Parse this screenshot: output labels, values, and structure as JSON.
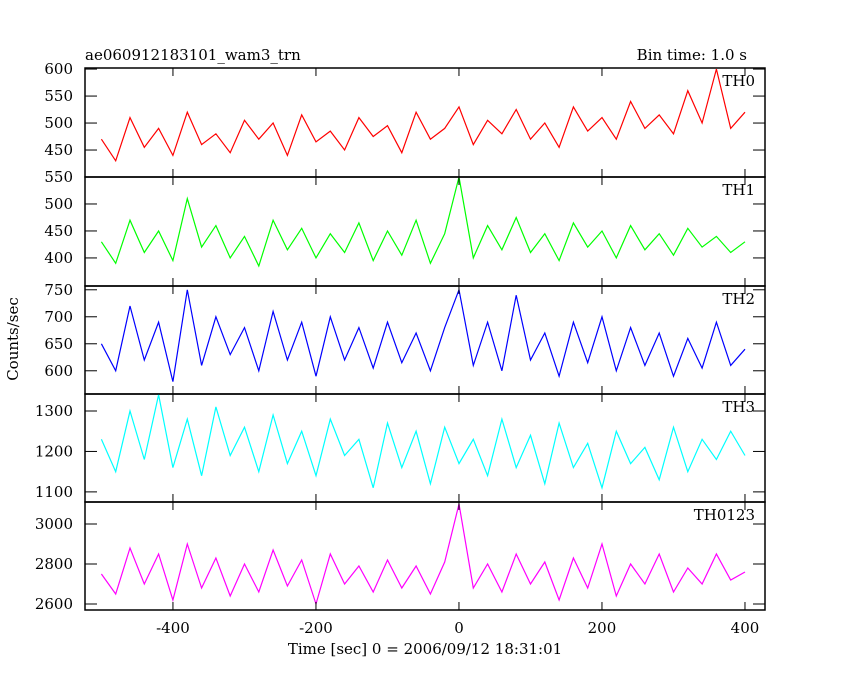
{
  "chart_data": {
    "type": "line",
    "title": "ae060912183101_wam3_trn",
    "subtitle": "Bin time: 1.0 s",
    "ylabel": "Counts/sec",
    "xlabel": "Time [sec] 0 = 2006/09/12 18:31:01",
    "xlim": [
      -523,
      428
    ],
    "xticks": [
      -400,
      -200,
      0,
      200,
      400
    ],
    "x": [
      -500,
      -480,
      -460,
      -440,
      -420,
      -400,
      -380,
      -360,
      -340,
      -320,
      -300,
      -280,
      -260,
      -240,
      -220,
      -200,
      -180,
      -160,
      -140,
      -120,
      -100,
      -80,
      -60,
      -40,
      -20,
      0,
      20,
      40,
      60,
      80,
      100,
      120,
      140,
      160,
      180,
      200,
      220,
      240,
      260,
      280,
      300,
      320,
      340,
      360,
      380,
      400
    ],
    "panels": [
      {
        "name": "TH0",
        "color": "#ff0000",
        "ylim": [
          400,
          602
        ],
        "yticks": [
          450,
          500,
          550,
          600
        ],
        "values": [
          470,
          430,
          510,
          455,
          490,
          440,
          520,
          460,
          480,
          445,
          505,
          470,
          500,
          440,
          515,
          465,
          485,
          450,
          510,
          475,
          495,
          445,
          520,
          470,
          490,
          530,
          460,
          505,
          480,
          525,
          470,
          500,
          455,
          530,
          485,
          510,
          470,
          540,
          490,
          515,
          480,
          560,
          500,
          600,
          490,
          520
        ]
      },
      {
        "name": "TH1",
        "color": "#00ff00",
        "ylim": [
          348,
          550
        ],
        "yticks": [
          400,
          450,
          500,
          550
        ],
        "values": [
          430,
          390,
          470,
          410,
          450,
          395,
          510,
          420,
          460,
          400,
          440,
          385,
          470,
          415,
          455,
          400,
          445,
          410,
          465,
          395,
          450,
          405,
          470,
          390,
          445,
          550,
          400,
          460,
          415,
          475,
          410,
          445,
          395,
          465,
          420,
          450,
          400,
          460,
          415,
          445,
          405,
          455,
          420,
          440,
          410,
          430
        ]
      },
      {
        "name": "TH2",
        "color": "#0000ff",
        "ylim": [
          557,
          757
        ],
        "yticks": [
          600,
          650,
          700,
          750
        ],
        "values": [
          650,
          600,
          720,
          620,
          690,
          580,
          750,
          610,
          700,
          630,
          680,
          600,
          710,
          620,
          690,
          590,
          700,
          620,
          680,
          605,
          690,
          615,
          670,
          600,
          680,
          750,
          610,
          690,
          600,
          740,
          620,
          670,
          590,
          690,
          615,
          700,
          600,
          680,
          610,
          670,
          590,
          660,
          605,
          690,
          610,
          640
        ]
      },
      {
        "name": "TH3",
        "color": "#00ffff",
        "ylim": [
          1075,
          1342
        ],
        "yticks": [
          1100,
          1200,
          1300
        ],
        "values": [
          1230,
          1150,
          1300,
          1180,
          1340,
          1160,
          1280,
          1140,
          1310,
          1190,
          1260,
          1150,
          1290,
          1170,
          1250,
          1140,
          1280,
          1190,
          1230,
          1110,
          1270,
          1160,
          1250,
          1120,
          1260,
          1170,
          1230,
          1140,
          1280,
          1160,
          1240,
          1120,
          1270,
          1160,
          1220,
          1110,
          1250,
          1170,
          1210,
          1130,
          1260,
          1150,
          1230,
          1180,
          1250,
          1190
        ]
      },
      {
        "name": "TH0123",
        "color": "#ff00ff",
        "ylim": [
          2570,
          3110
        ],
        "yticks": [
          2600,
          2800,
          3000
        ],
        "values": [
          2750,
          2650,
          2880,
          2700,
          2850,
          2620,
          2900,
          2680,
          2830,
          2640,
          2800,
          2660,
          2870,
          2690,
          2820,
          2600,
          2850,
          2700,
          2790,
          2660,
          2820,
          2680,
          2790,
          2650,
          2810,
          3100,
          2680,
          2800,
          2660,
          2850,
          2700,
          2810,
          2620,
          2830,
          2680,
          2900,
          2640,
          2800,
          2700,
          2850,
          2660,
          2780,
          2700,
          2850,
          2720,
          2760
        ]
      }
    ]
  }
}
